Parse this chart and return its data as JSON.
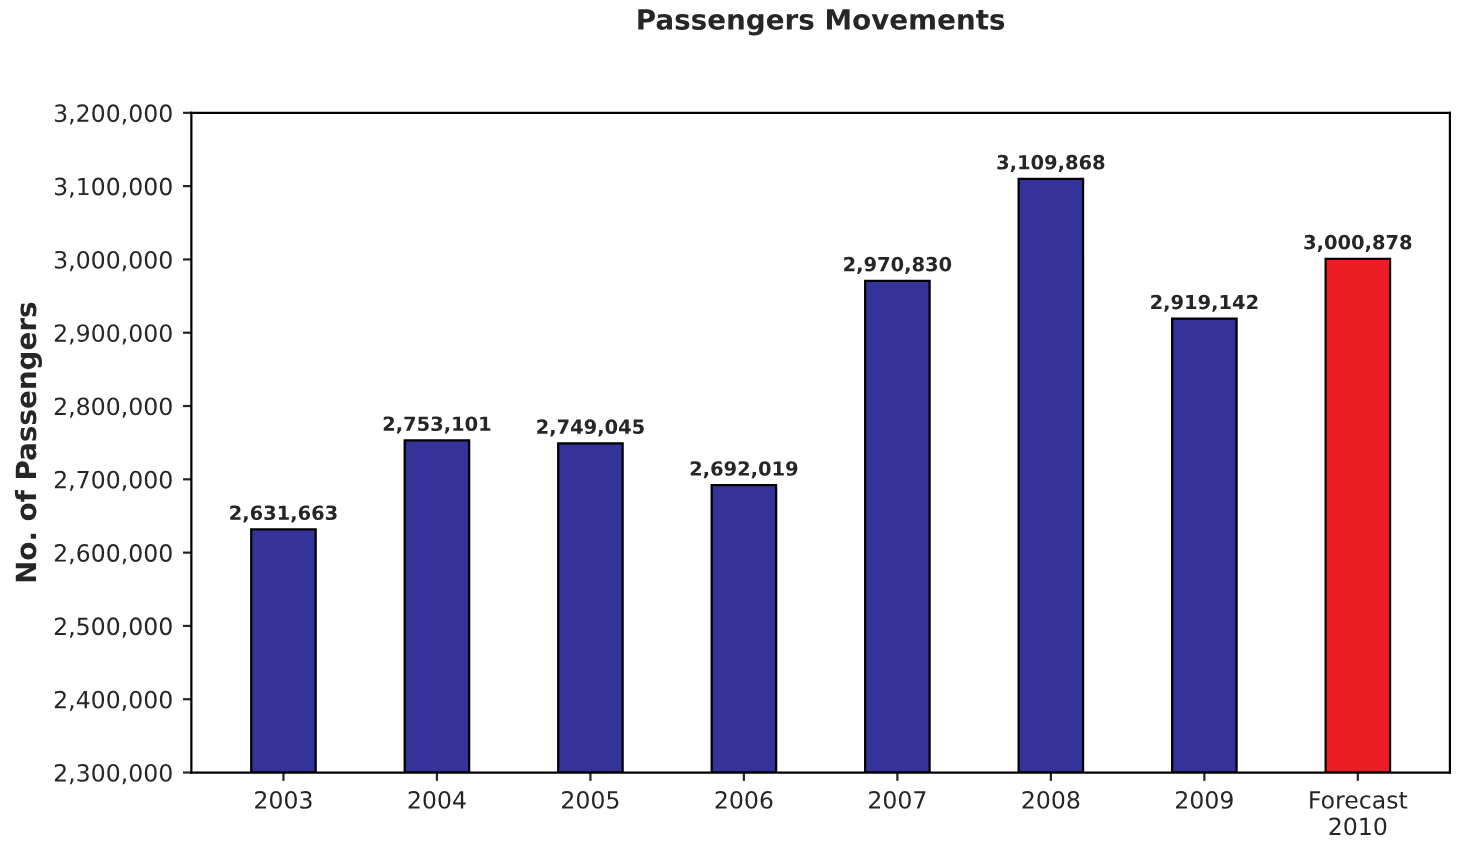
{
  "chart_data": {
    "type": "bar",
    "title": "Passengers Movements",
    "ylabel": "No. of Passengers",
    "categories": [
      "2003",
      "2004",
      "2005",
      "2006",
      "2007",
      "2008",
      "2009",
      "Forecast\n2010"
    ],
    "values": [
      2631663,
      2753101,
      2749045,
      2692019,
      2970830,
      3109868,
      2919142,
      3000878
    ],
    "colors": [
      "#333399",
      "#333399",
      "#333399",
      "#333399",
      "#333399",
      "#333399",
      "#333399",
      "#ee1c24"
    ],
    "value_labels": [
      "2,631,663",
      "2,753,101",
      "2,749,045",
      "2,692,019",
      "2,970,830",
      "3,109,868",
      "2,919,142",
      "3,000,878"
    ],
    "ylim": [
      2300000,
      3200000
    ],
    "yticks": [
      {
        "value": 2300000,
        "label": "2,300,000"
      },
      {
        "value": 2400000,
        "label": "2,400,000"
      },
      {
        "value": 2500000,
        "label": "2,500,000"
      },
      {
        "value": 2600000,
        "label": "2,600,000"
      },
      {
        "value": 2700000,
        "label": "2,700,000"
      },
      {
        "value": 2800000,
        "label": "2,800,000"
      },
      {
        "value": 2900000,
        "label": "2,900,000"
      },
      {
        "value": 3000000,
        "label": "3,000,000"
      },
      {
        "value": 3100000,
        "label": "3,100,000"
      },
      {
        "value": 3200000,
        "label": "3,200,000"
      }
    ],
    "grid": false,
    "legend": false
  }
}
